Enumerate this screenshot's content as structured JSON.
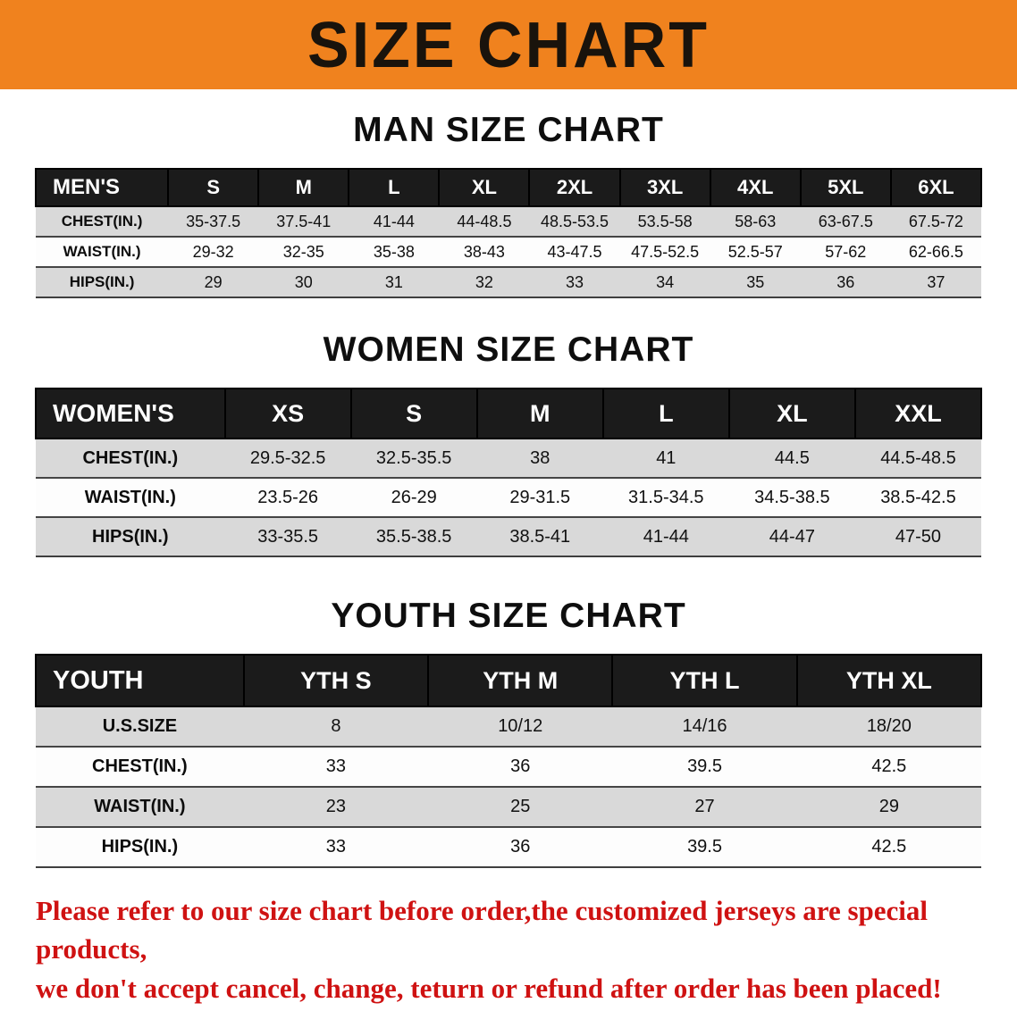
{
  "banner": {
    "title": "SIZE CHART"
  },
  "colors": {
    "banner_bg": "#F0821E",
    "table_header_bg": "#1B1B1B",
    "row_stripe": "#D9D9D9",
    "disclaimer_text": "#CF1212"
  },
  "sections": [
    {
      "heading": "MAN SIZE CHART",
      "table": {
        "header": [
          "MEN'S",
          "S",
          "M",
          "L",
          "XL",
          "2XL",
          "3XL",
          "4XL",
          "5XL",
          "6XL"
        ],
        "rows": [
          [
            "CHEST(IN.)",
            "35-37.5",
            "37.5-41",
            "41-44",
            "44-48.5",
            "48.5-53.5",
            "53.5-58",
            "58-63",
            "63-67.5",
            "67.5-72"
          ],
          [
            "WAIST(IN.)",
            "29-32",
            "32-35",
            "35-38",
            "38-43",
            "43-47.5",
            "47.5-52.5",
            "52.5-57",
            "57-62",
            "62-66.5"
          ],
          [
            "HIPS(IN.)",
            "29",
            "30",
            "31",
            "32",
            "33",
            "34",
            "35",
            "36",
            "37"
          ]
        ]
      }
    },
    {
      "heading": "WOMEN SIZE CHART",
      "table": {
        "header": [
          "WOMEN'S",
          "XS",
          "S",
          "M",
          "L",
          "XL",
          "XXL"
        ],
        "rows": [
          [
            "CHEST(IN.)",
            "29.5-32.5",
            "32.5-35.5",
            "38",
            "41",
            "44.5",
            "44.5-48.5"
          ],
          [
            "WAIST(IN.)",
            "23.5-26",
            "26-29",
            "29-31.5",
            "31.5-34.5",
            "34.5-38.5",
            "38.5-42.5"
          ],
          [
            "HIPS(IN.)",
            "33-35.5",
            "35.5-38.5",
            "38.5-41",
            "41-44",
            "44-47",
            "47-50"
          ]
        ]
      }
    },
    {
      "heading": "YOUTH SIZE CHART",
      "table": {
        "header": [
          "YOUTH",
          "YTH S",
          "YTH M",
          "YTH L",
          "YTH XL"
        ],
        "rows": [
          [
            "U.S.SIZE",
            "8",
            "10/12",
            "14/16",
            "18/20"
          ],
          [
            "CHEST(IN.)",
            "33",
            "36",
            "39.5",
            "42.5"
          ],
          [
            "WAIST(IN.)",
            "23",
            "25",
            "27",
            "29"
          ],
          [
            "HIPS(IN.)",
            "33",
            "36",
            "39.5",
            "42.5"
          ]
        ]
      }
    }
  ],
  "disclaimer": {
    "line1": "Please refer to our size chart before order,the customized jerseys are special products,",
    "line2": "we don't accept cancel, change, teturn or refund after order has been placed!"
  }
}
